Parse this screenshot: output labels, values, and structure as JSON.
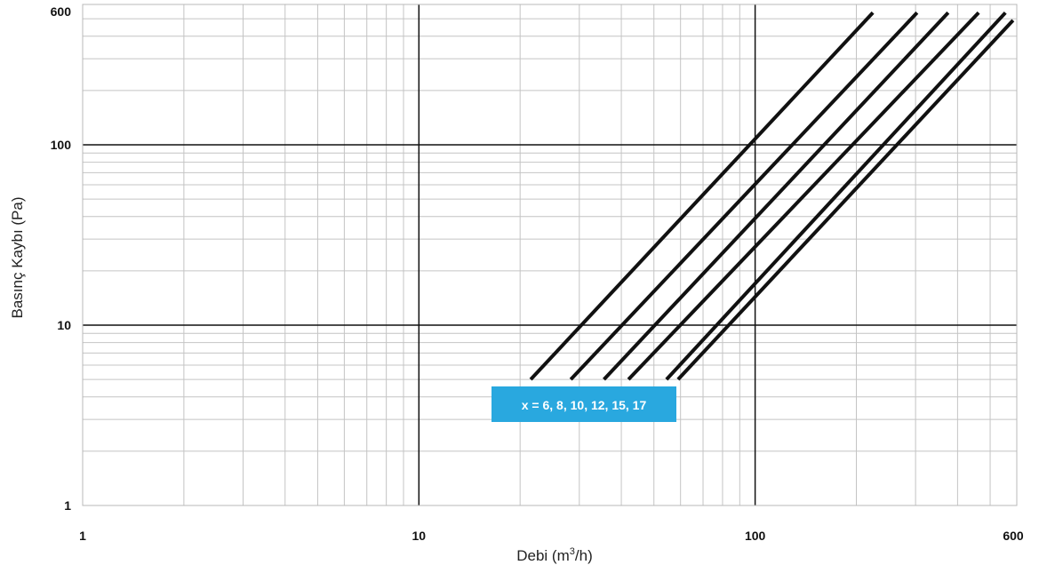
{
  "chart_data": {
    "type": "line",
    "x_scale": "log",
    "y_scale": "log",
    "xlim": [
      1,
      600
    ],
    "ylim": [
      1,
      600
    ],
    "grid": true,
    "xlabel_main": "Debi (m",
    "xlabel_sup": "3",
    "xlabel_end": "/h)",
    "ylabel": "Basınç Kaybı (Pa)",
    "x_ticks": [
      {
        "value": 1,
        "label": "1"
      },
      {
        "value": 10,
        "label": "10"
      },
      {
        "value": 100,
        "label": "100"
      },
      {
        "value": 600,
        "label": "600"
      }
    ],
    "y_ticks": [
      {
        "value": 1,
        "label": "1"
      },
      {
        "value": 10,
        "label": "10"
      },
      {
        "value": 100,
        "label": "100"
      },
      {
        "value": 600,
        "label": "600"
      }
    ],
    "annotation": {
      "text": "x = 6, 8, 10, 12, 15, 17",
      "color": "#29a8df"
    },
    "series": [
      {
        "x": [
          21.5,
          224
        ],
        "y": [
          5,
          540
        ],
        "color": "#111111"
      },
      {
        "x": [
          28.3,
          303
        ],
        "y": [
          5,
          540
        ],
        "color": "#111111"
      },
      {
        "x": [
          35.5,
          375
        ],
        "y": [
          5,
          540
        ],
        "color": "#111111"
      },
      {
        "x": [
          42,
          462
        ],
        "y": [
          5,
          540
        ],
        "color": "#111111"
      },
      {
        "x": [
          54.5,
          555
        ],
        "y": [
          5,
          540
        ],
        "color": "#111111"
      },
      {
        "x": [
          59,
          585
        ],
        "y": [
          5,
          490
        ],
        "color": "#111111"
      }
    ]
  }
}
